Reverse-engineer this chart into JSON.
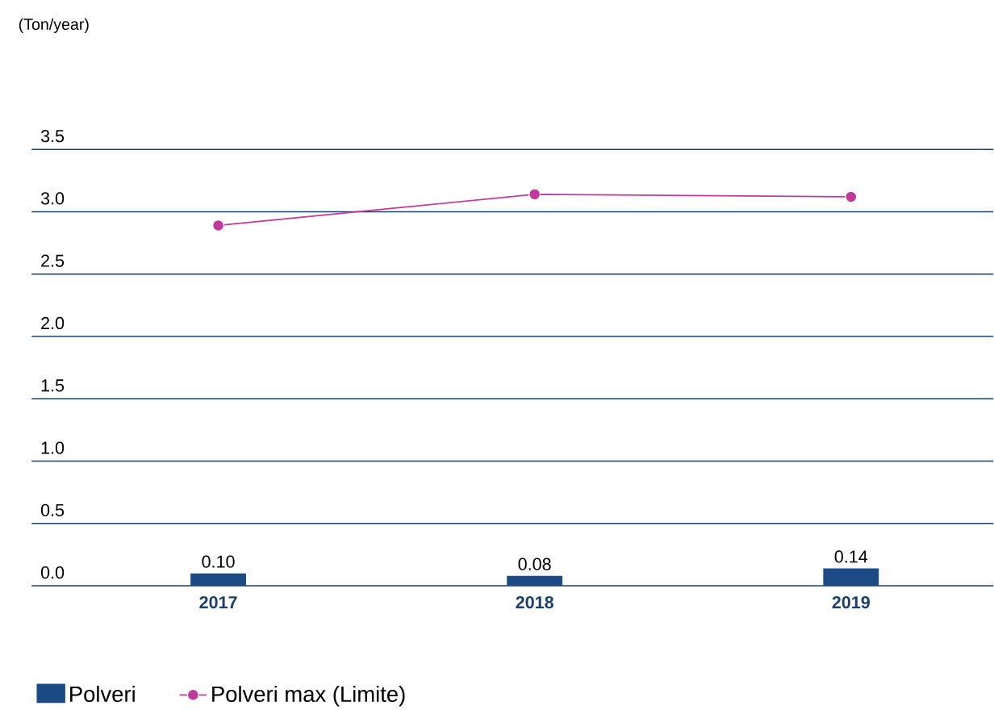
{
  "chart_data": {
    "type": "bar",
    "annotations": [
      "(Ton/year)"
    ],
    "categories": [
      "2017",
      "2018",
      "2019"
    ],
    "series": [
      {
        "name": "Polveri",
        "color": "#1b4a85",
        "values": [
          0.1,
          0.08,
          0.14
        ],
        "value_labels": [
          "0.10",
          "0.08",
          "0.14"
        ]
      },
      {
        "name": "Polveri max (Limite)",
        "type": "line",
        "color": "#c03a9b",
        "marker": "circle",
        "values": [
          2.89,
          3.14,
          3.12
        ]
      }
    ],
    "ylim": [
      0,
      3.5
    ],
    "yticks": [
      {
        "value": 0,
        "label": "0.0"
      },
      0.5,
      {
        "value": 1,
        "label": "1.0"
      },
      1.5,
      {
        "value": 2,
        "label": "2.0"
      },
      2.5,
      {
        "value": 3,
        "label": "3.0"
      },
      3.5
    ],
    "grid": "y",
    "legend": "bottom"
  }
}
